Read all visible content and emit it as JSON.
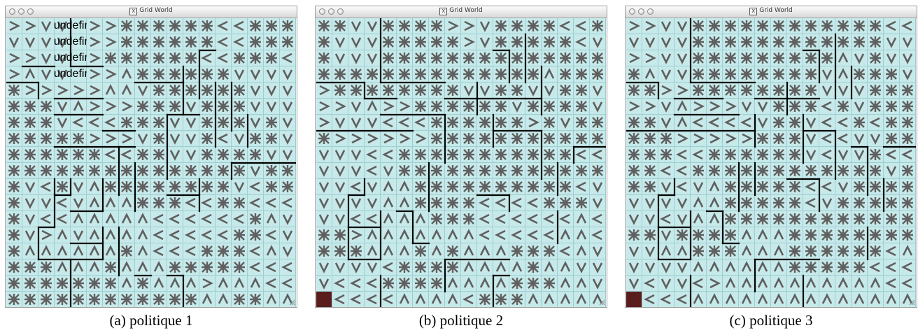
{
  "panels": [
    {
      "window_title": "Grid World",
      "caption": "(a) politique 1",
      "grid": [
        "RRVVBRRXXXXXXCCXXX",
        "VVVVBRRXXXXXXCCXXX",
        "RRVVBRXXXXXXCCXXXC",
        "RAVVBRRAXXXXXXVVVV",
        "XRRRRRAAVXXXXXXVVV",
        "XXXVARRRXXXVXXXVVV",
        "XXXVCCCXXXVVXXXVXV",
        "XXXXXRRRVXVVXCVXXV",
        "XXXXXXCCXXVVXXXXVV",
        "XXXXXXXXXXXXXXXVXX",
        "XVCXVAXXXXXXXXVCXX",
        "XVVCVAAAXXXCCXXCCC",
        "XVCCAAAAACCCCCCXAV",
        "XVRAVAAAACCCCCXXCV",
        "XAAAAAAXACCCXXXCAV",
        "XXXAAAXAAAXXXXXCCC",
        "XXXXXXXAXAAARAAACC",
        "XXXXXXXXXXXXAAXXAA"
      ],
      "goal_active": false
    },
    {
      "window_title": "Grid World",
      "caption": "(b) politique 2",
      "grid": [
        "XXVVXXXXRRVXXXXCCX",
        "XVVVXXXXXRVXXXXXCV",
        "XVVVXXXXXXXXXXXXXX",
        "XXXXXXXXXXXXXXAXXX",
        "RXXXXXXXXVVXXVVXXV",
        "RRVARRXXXXXXVXXXXV",
        "RVVVCCCXXXXXXRXVXX",
        "XRRRRRRXXXXXXXXXXX",
        "VVVCCXXXXXXXXXXXCC",
        "VVVCVXXXXXXXXXXXXX",
        "VVCVAAXXXXXXXXXXCV",
        "VVVVAAXXXXCCCCXXXV",
        "VVCCAAAXXXCCCCCCAC",
        "XXRAAAAAAACCCCCAAC",
        "XXXAAAXAXAAAXXXCAV",
        "VVVVCXXXXAAAAXAAVV",
        "VCCCXXXXAAAAXXXAAV",
        "GCCCCAAAACXXXAAAAA"
      ],
      "goal_active": true
    },
    {
      "window_title": "Grid World",
      "caption": "(c) politique 3",
      "grid": [
        "RRVVXXXXXXXXXXXXCC",
        "VVVVXXXXXXXXXXXXVV",
        "RRVVXXXXXXXXXAVXVV",
        "XAVVXXXXXXXXVAXXXV",
        "XXRRXXXXXXXXVVVXXX",
        "RRVARRRVVXXXCXVXXX",
        "XXVACCCCVXXVCCXCXX",
        "XXXRRRRRXXXVCCVVXX",
        "XXXCCXXXXXXVCVVXCC",
        "XXCCXXXXXXXXXXXXVX",
        "XXVCVAXXXXXCCVXXXX",
        "VVVVAAXXXXXCVXXXXX",
        "VVCVAAXXXXXXXXXXXX",
        "XXVXXXXAAAXXXXXXXX",
        "VVAAXXXAAAXXXXXXCA",
        "VVVVAAAAAAXXXXXCCC",
        "VCVVCRAAAAAAAAAACC",
        "GCCCAAAAAAAAAAAAAA"
      ],
      "goal_active": true
    }
  ],
  "legend_glyphs": {
    "R": "arrow-right-icon",
    "C": "arrow-left-icon",
    "A": "arrow-up-icon",
    "V": "arrow-down-icon",
    "X": "undecided-star-icon",
    "G": "goal-cell"
  },
  "colors": {
    "cell_bg": "#c7e9ea",
    "cell_border": "#9ccfd2",
    "glyph": "#5f5f5f",
    "wall": "#000000",
    "goal": "#5a1d1d"
  }
}
